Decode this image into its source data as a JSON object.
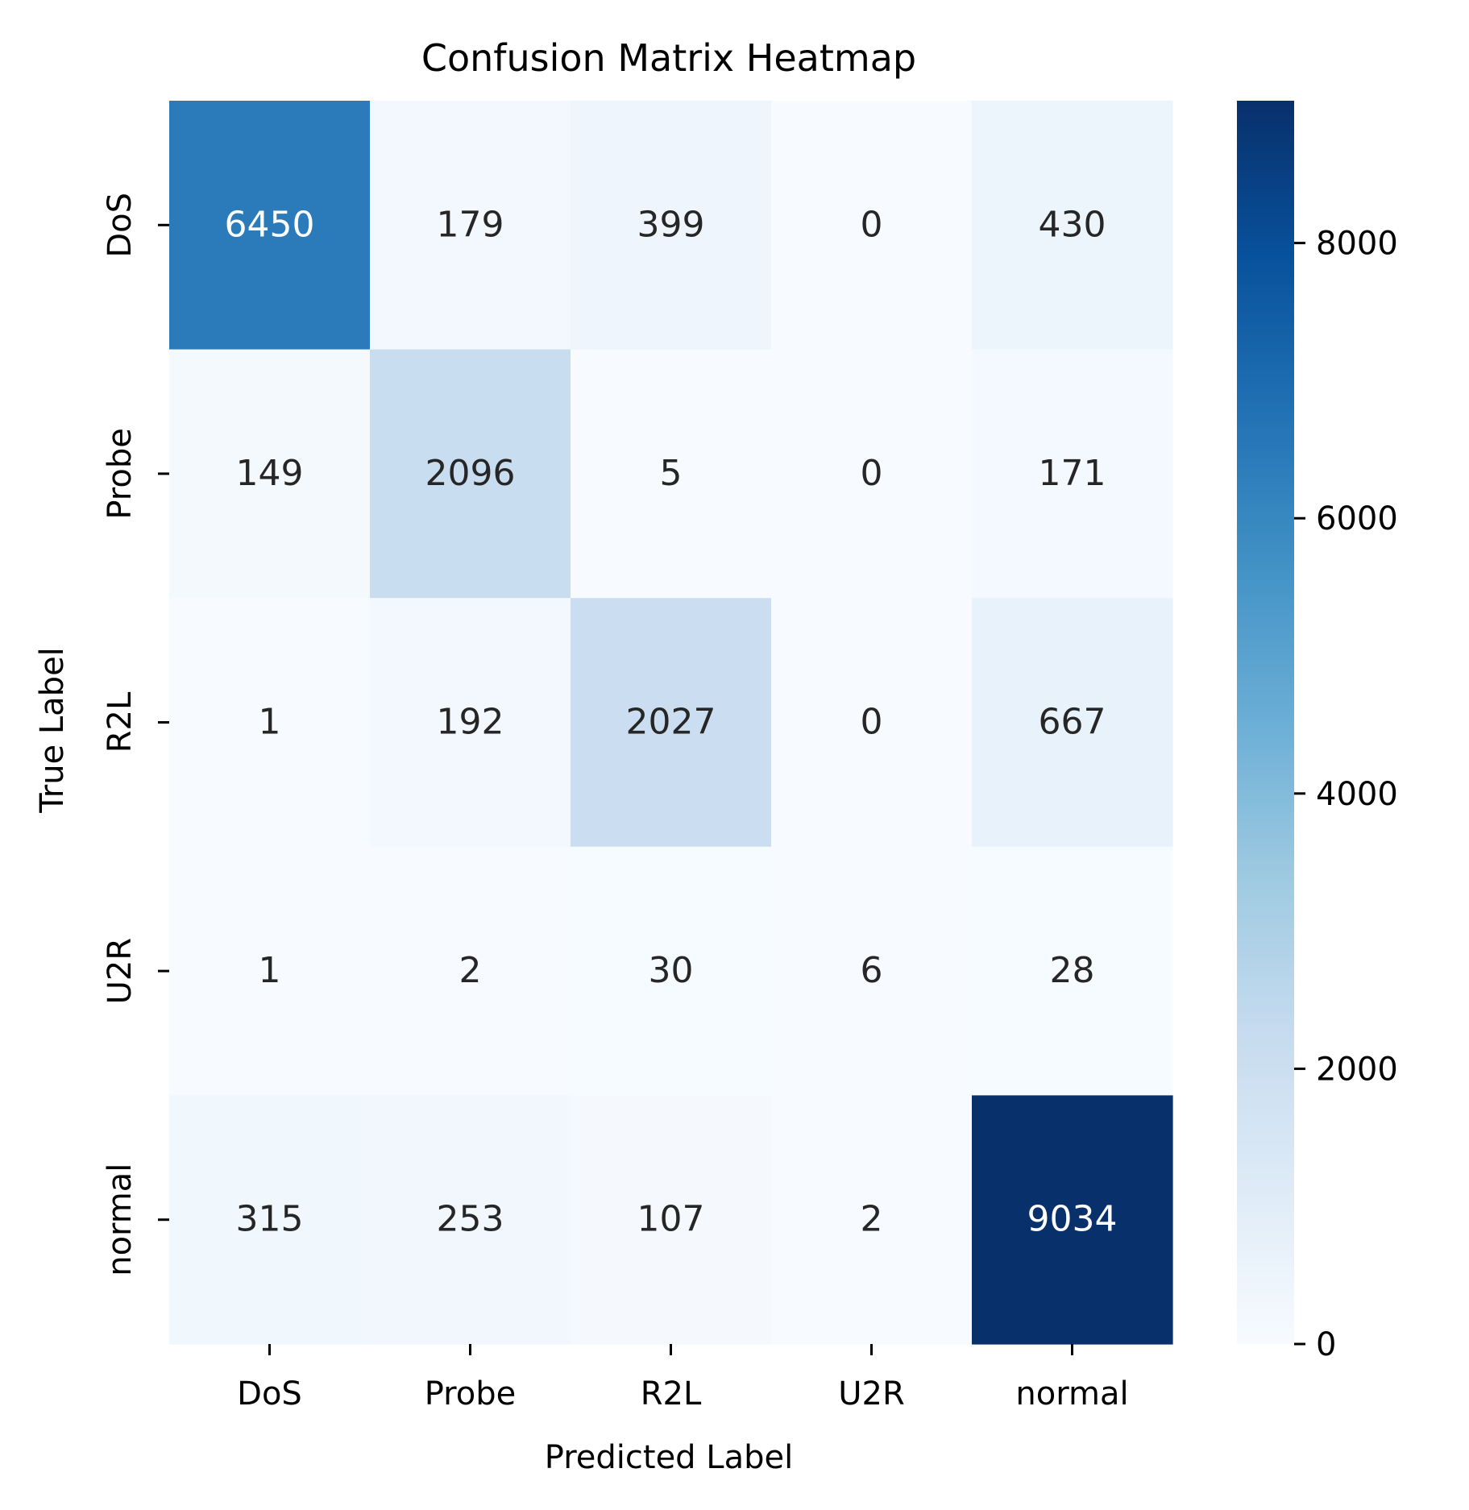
{
  "chart_data": {
    "type": "heatmap",
    "title": "Confusion Matrix Heatmap",
    "xlabel": "Predicted Label",
    "ylabel": "True Label",
    "x_categories": [
      "DoS",
      "Probe",
      "R2L",
      "U2R",
      "normal"
    ],
    "y_categories": [
      "DoS",
      "Probe",
      "R2L",
      "U2R",
      "normal"
    ],
    "values": [
      [
        6450,
        179,
        399,
        0,
        430
      ],
      [
        149,
        2096,
        5,
        0,
        171
      ],
      [
        1,
        192,
        2027,
        0,
        667
      ],
      [
        1,
        2,
        30,
        6,
        28
      ],
      [
        315,
        253,
        107,
        2,
        9034
      ]
    ],
    "colorbar": {
      "min": 0,
      "max": 9034,
      "ticks": [
        "0",
        "2000",
        "4000",
        "6000",
        "8000"
      ],
      "colormap": "Blues"
    },
    "colormap_stops": [
      "#f7fbff",
      "#deebf7",
      "#c6dbef",
      "#9ecae1",
      "#6baed6",
      "#4292c6",
      "#2171b5",
      "#08519c",
      "#08306b"
    ],
    "annotation_colors": {
      "dark": "#262626",
      "light": "#ffffff"
    },
    "grid": false,
    "legend": "none"
  }
}
